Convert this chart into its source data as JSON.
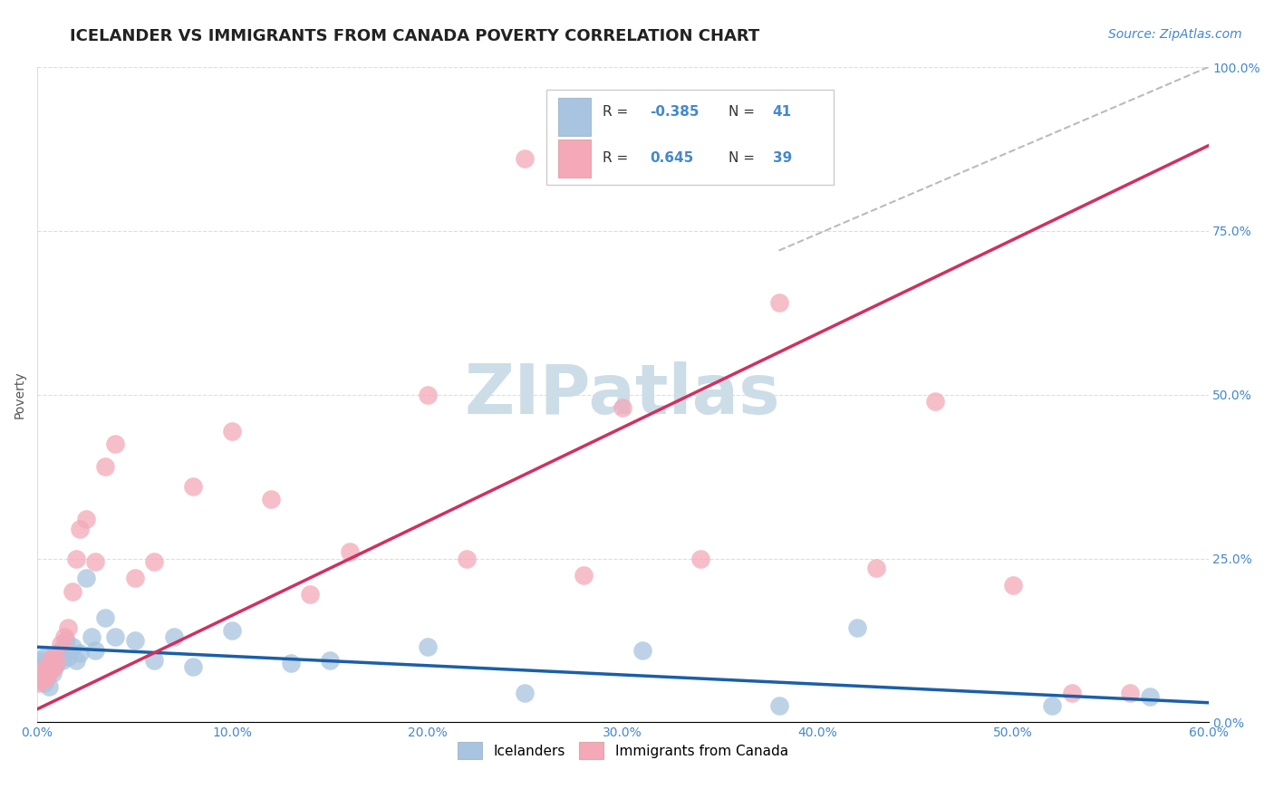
{
  "title": "ICELANDER VS IMMIGRANTS FROM CANADA POVERTY CORRELATION CHART",
  "source": "Source: ZipAtlas.com",
  "xlabel_ticks": [
    "0.0%",
    "10.0%",
    "20.0%",
    "30.0%",
    "40.0%",
    "50.0%",
    "60.0%"
  ],
  "xlabel_vals": [
    0.0,
    0.1,
    0.2,
    0.3,
    0.4,
    0.5,
    0.6
  ],
  "ylabel": "Poverty",
  "ylabel_ticks": [
    "0.0%",
    "25.0%",
    "50.0%",
    "75.0%",
    "100.0%"
  ],
  "ylabel_vals": [
    0.0,
    0.25,
    0.5,
    0.75,
    1.0
  ],
  "xlim": [
    0.0,
    0.6
  ],
  "ylim": [
    0.0,
    1.0
  ],
  "r_icelanders": -0.385,
  "n_icelanders": 41,
  "r_canada": 0.645,
  "n_canada": 39,
  "icelander_color": "#a8c4e0",
  "icelander_edge_color": "#7aaad0",
  "icelander_line_color": "#1a5fa8",
  "canada_color": "#f4a8b8",
  "canada_edge_color": "#e888a0",
  "canada_line_color": "#d03060",
  "diag_line_color": "#bbbbbb",
  "title_fontsize": 13,
  "source_fontsize": 10,
  "ylabel_fontsize": 10,
  "tick_fontsize": 10,
  "legend_fontsize": 11,
  "watermark_text": "ZIPatlas",
  "watermark_color": "#ccdde8",
  "grid_color": "#dddddd",
  "icelander_x": [
    0.001,
    0.002,
    0.002,
    0.003,
    0.004,
    0.004,
    0.005,
    0.005,
    0.006,
    0.006,
    0.007,
    0.008,
    0.009,
    0.01,
    0.011,
    0.012,
    0.013,
    0.015,
    0.016,
    0.018,
    0.02,
    0.022,
    0.025,
    0.028,
    0.03,
    0.035,
    0.04,
    0.05,
    0.06,
    0.07,
    0.08,
    0.1,
    0.13,
    0.15,
    0.2,
    0.25,
    0.31,
    0.38,
    0.42,
    0.52,
    0.57
  ],
  "icelander_y": [
    0.085,
    0.065,
    0.095,
    0.07,
    0.06,
    0.1,
    0.075,
    0.09,
    0.055,
    0.08,
    0.095,
    0.075,
    0.085,
    0.09,
    0.105,
    0.11,
    0.095,
    0.125,
    0.1,
    0.115,
    0.095,
    0.105,
    0.22,
    0.13,
    0.11,
    0.16,
    0.13,
    0.125,
    0.095,
    0.13,
    0.085,
    0.14,
    0.09,
    0.095,
    0.115,
    0.045,
    0.11,
    0.025,
    0.145,
    0.025,
    0.04
  ],
  "canada_x": [
    0.001,
    0.002,
    0.003,
    0.004,
    0.005,
    0.006,
    0.007,
    0.008,
    0.009,
    0.01,
    0.012,
    0.014,
    0.016,
    0.018,
    0.02,
    0.022,
    0.025,
    0.03,
    0.035,
    0.04,
    0.05,
    0.06,
    0.08,
    0.1,
    0.12,
    0.14,
    0.16,
    0.2,
    0.22,
    0.25,
    0.28,
    0.3,
    0.34,
    0.38,
    0.43,
    0.46,
    0.5,
    0.53,
    0.56
  ],
  "canada_y": [
    0.06,
    0.075,
    0.065,
    0.08,
    0.07,
    0.09,
    0.08,
    0.1,
    0.085,
    0.095,
    0.12,
    0.13,
    0.145,
    0.2,
    0.25,
    0.295,
    0.31,
    0.245,
    0.39,
    0.425,
    0.22,
    0.245,
    0.36,
    0.445,
    0.34,
    0.195,
    0.26,
    0.5,
    0.25,
    0.86,
    0.225,
    0.48,
    0.25,
    0.64,
    0.235,
    0.49,
    0.21,
    0.045,
    0.045
  ],
  "icel_line_x0": 0.0,
  "icel_line_x1": 0.6,
  "icel_line_y0": 0.115,
  "icel_line_y1": 0.03,
  "canada_line_x0": 0.0,
  "canada_line_x1": 0.6,
  "canada_line_y0": 0.02,
  "canada_line_y1": 0.88
}
